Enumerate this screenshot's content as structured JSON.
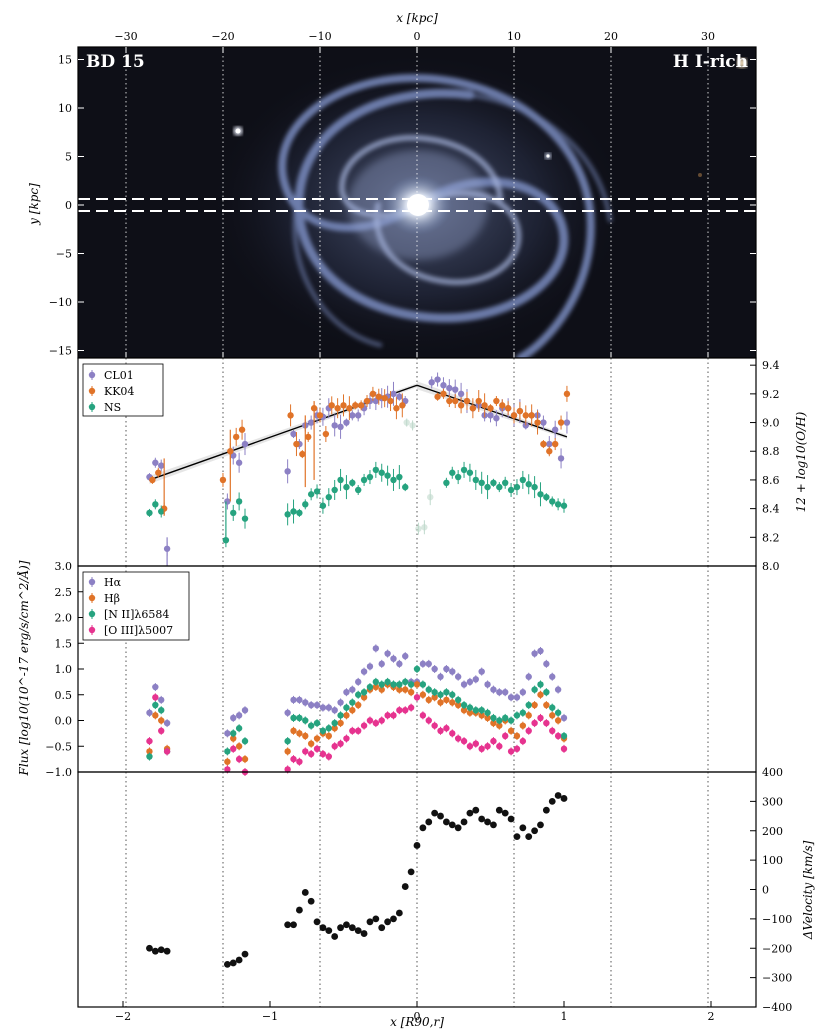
{
  "figure": {
    "galaxy_label": "BD 15",
    "type_label": "H I-rich",
    "top_axis_label": "x [kpc]",
    "bottom_axis_label": "x [R90,r]"
  },
  "colors": {
    "CL01": "#8c80c4",
    "KK04": "#e07328",
    "NS": "#26a37f",
    "Ha": "#8c80c4",
    "Hb": "#e07328",
    "NII": "#26a37f",
    "OIII": "#e6338f",
    "velocity": "#111111"
  },
  "chart_data": [
    {
      "type": "image",
      "name": "galaxy-image-panel",
      "title": "BD 15",
      "annotation": "H I-rich",
      "xlabel": "x [kpc]",
      "ylabel": "y [kpc]",
      "xlim": [
        -35,
        35
      ],
      "ylim": [
        -16,
        16
      ],
      "xticks": [
        -30,
        -20,
        -10,
        0,
        10,
        20,
        30
      ],
      "yticks": [
        15,
        10,
        5,
        0,
        -5,
        -10,
        -15
      ],
      "slit_y": [
        -0.6,
        0.6
      ]
    },
    {
      "type": "scatter",
      "name": "metallicity-panel",
      "ylabel": "12 + log10(O/H)",
      "ylim": [
        8.0,
        9.45
      ],
      "yticks": [
        8.0,
        8.2,
        8.4,
        8.6,
        8.8,
        9.0,
        9.2,
        9.4
      ],
      "left_tick_label": "3.0",
      "legend": [
        "CL01",
        "KK04",
        "NS"
      ],
      "series": [
        {
          "name": "CL01",
          "x": [
            -1.82,
            -1.78,
            -1.74,
            -1.7,
            -1.29,
            -1.25,
            -1.21,
            -1.17,
            -0.88,
            -0.84,
            -0.8,
            -0.76,
            -0.72,
            -0.68,
            -0.64,
            -0.6,
            -0.56,
            -0.52,
            -0.48,
            -0.44,
            -0.4,
            -0.36,
            -0.32,
            -0.28,
            -0.24,
            -0.2,
            -0.16,
            -0.12,
            -0.08,
            0.1,
            0.14,
            0.18,
            0.22,
            0.26,
            0.3,
            0.34,
            0.38,
            0.42,
            0.46,
            0.5,
            0.54,
            0.58,
            0.62,
            0.66,
            0.7,
            0.74,
            0.78,
            0.82,
            0.86,
            0.9,
            0.94,
            0.98,
            1.02
          ],
          "y": [
            8.62,
            8.72,
            8.7,
            8.12,
            8.45,
            8.77,
            8.72,
            8.85,
            8.66,
            8.92,
            8.85,
            8.98,
            9.0,
            9.05,
            9.04,
            9.1,
            8.98,
            8.97,
            9.0,
            9.05,
            9.05,
            9.1,
            9.15,
            9.15,
            9.17,
            9.18,
            9.2,
            9.18,
            9.15,
            9.28,
            9.3,
            9.26,
            9.24,
            9.23,
            9.2,
            9.15,
            9.1,
            9.12,
            9.05,
            9.05,
            9.03,
            9.1,
            9.1,
            9.05,
            9.08,
            8.98,
            9.05,
            9.05,
            9.0,
            8.85,
            8.95,
            8.75,
            9.0
          ]
        },
        {
          "name": "KK04",
          "x": [
            -1.8,
            -1.76,
            -1.72,
            -1.32,
            -1.27,
            -1.23,
            -1.19,
            -0.86,
            -0.82,
            -0.78,
            -0.74,
            -0.7,
            -0.66,
            -0.62,
            -0.58,
            -0.54,
            -0.5,
            -0.46,
            -0.42,
            -0.38,
            -0.34,
            -0.3,
            -0.26,
            -0.22,
            -0.18,
            -0.14,
            -0.1,
            0.14,
            0.18,
            0.22,
            0.26,
            0.3,
            0.34,
            0.38,
            0.42,
            0.46,
            0.5,
            0.54,
            0.58,
            0.62,
            0.66,
            0.7,
            0.74,
            0.78,
            0.82,
            0.86,
            0.9,
            0.94,
            0.98,
            1.02
          ],
          "y": [
            8.6,
            8.65,
            8.4,
            8.6,
            8.8,
            8.9,
            8.95,
            9.05,
            8.85,
            8.78,
            8.9,
            9.1,
            9.05,
            8.92,
            9.12,
            9.1,
            9.12,
            9.1,
            9.12,
            9.12,
            9.15,
            9.2,
            9.18,
            9.17,
            9.15,
            9.1,
            9.12,
            9.18,
            9.2,
            9.15,
            9.15,
            9.12,
            9.15,
            9.1,
            9.15,
            9.12,
            9.1,
            9.15,
            9.12,
            9.1,
            9.05,
            9.08,
            9.05,
            9.05,
            9.0,
            8.85,
            8.8,
            8.85,
            9.0,
            9.2
          ]
        },
        {
          "name": "NS",
          "x": [
            -1.82,
            -1.78,
            -1.74,
            -1.3,
            -1.25,
            -1.21,
            -1.17,
            -0.88,
            -0.84,
            -0.8,
            -0.76,
            -0.72,
            -0.68,
            -0.64,
            -0.6,
            -0.56,
            -0.52,
            -0.48,
            -0.44,
            -0.4,
            -0.36,
            -0.32,
            -0.28,
            -0.24,
            -0.2,
            -0.16,
            -0.12,
            -0.08,
            0.2,
            0.24,
            0.28,
            0.32,
            0.36,
            0.4,
            0.44,
            0.48,
            0.52,
            0.56,
            0.6,
            0.64,
            0.68,
            0.72,
            0.76,
            0.8,
            0.84,
            0.88,
            0.92,
            0.96,
            1.0
          ],
          "y": [
            8.37,
            8.43,
            8.38,
            8.18,
            8.37,
            8.45,
            8.33,
            8.36,
            8.38,
            8.37,
            8.43,
            8.5,
            8.52,
            8.42,
            8.48,
            8.53,
            8.6,
            8.55,
            8.58,
            8.53,
            8.6,
            8.62,
            8.67,
            8.65,
            8.63,
            8.6,
            8.62,
            8.55,
            8.58,
            8.65,
            8.62,
            8.67,
            8.65,
            8.6,
            8.58,
            8.55,
            8.58,
            8.55,
            8.58,
            8.53,
            8.55,
            8.6,
            8.57,
            8.55,
            8.5,
            8.48,
            8.45,
            8.43,
            8.42
          ]
        },
        {
          "name": "central",
          "x": [
            -0.07,
            -0.03,
            0.01,
            0.05,
            0.09
          ],
          "y": [
            9.0,
            8.98,
            8.26,
            8.27,
            8.48
          ]
        }
      ],
      "fit_lines": [
        {
          "x": [
            -1.82,
            0.0
          ],
          "y": [
            8.6,
            9.26
          ]
        },
        {
          "x": [
            0.0,
            1.02
          ],
          "y": [
            9.26,
            8.9
          ]
        }
      ]
    },
    {
      "type": "scatter",
      "name": "flux-panel",
      "ylabel": "Flux [log10(10^-17 erg/s/cm^2/Å)]",
      "ylim": [
        -1.0,
        3.0
      ],
      "yticks": [
        -1.0,
        -0.5,
        0.0,
        0.5,
        1.0,
        1.5,
        2.0,
        2.5
      ],
      "legend": [
        "Hα",
        "Hβ",
        "[N II]λ6584",
        "[O III]λ5007"
      ],
      "series": [
        {
          "name": "Hα",
          "x": [
            -1.82,
            -1.78,
            -1.74,
            -1.7,
            -1.29,
            -1.25,
            -1.21,
            -1.17,
            -0.88,
            -0.84,
            -0.8,
            -0.76,
            -0.72,
            -0.68,
            -0.64,
            -0.6,
            -0.56,
            -0.52,
            -0.48,
            -0.44,
            -0.4,
            -0.36,
            -0.32,
            -0.28,
            -0.24,
            -0.2,
            -0.16,
            -0.12,
            -0.08,
            -0.04,
            0.0,
            0.04,
            0.08,
            0.12,
            0.16,
            0.2,
            0.24,
            0.28,
            0.32,
            0.36,
            0.4,
            0.44,
            0.48,
            0.52,
            0.56,
            0.6,
            0.64,
            0.68,
            0.72,
            0.76,
            0.8,
            0.84,
            0.88,
            0.92,
            0.96,
            1.0
          ],
          "y": [
            0.15,
            0.65,
            0.4,
            -0.05,
            -0.25,
            0.05,
            0.1,
            0.2,
            0.15,
            0.4,
            0.4,
            0.35,
            0.3,
            0.3,
            0.25,
            0.25,
            0.2,
            0.35,
            0.55,
            0.6,
            0.75,
            0.95,
            1.05,
            1.4,
            1.1,
            1.3,
            1.2,
            1.1,
            1.25,
            0.75,
            0.75,
            1.1,
            1.1,
            1.0,
            0.85,
            1.0,
            0.95,
            0.85,
            0.7,
            0.75,
            0.8,
            0.95,
            0.7,
            0.6,
            0.55,
            0.55,
            0.45,
            0.45,
            0.55,
            0.85,
            1.3,
            1.35,
            1.1,
            0.85,
            0.6,
            0.05
          ]
        },
        {
          "name": "Hβ",
          "x": [
            -1.82,
            -1.78,
            -1.74,
            -1.7,
            -1.29,
            -1.25,
            -1.21,
            -1.17,
            -0.88,
            -0.84,
            -0.8,
            -0.76,
            -0.72,
            -0.68,
            -0.64,
            -0.6,
            -0.56,
            -0.52,
            -0.48,
            -0.44,
            -0.4,
            -0.36,
            -0.32,
            -0.28,
            -0.24,
            -0.2,
            -0.16,
            -0.12,
            -0.08,
            -0.04,
            0.0,
            0.04,
            0.08,
            0.12,
            0.16,
            0.2,
            0.24,
            0.28,
            0.32,
            0.36,
            0.4,
            0.44,
            0.48,
            0.52,
            0.56,
            0.6,
            0.64,
            0.68,
            0.72,
            0.76,
            0.8,
            0.84,
            0.88,
            0.92,
            0.96,
            1.0
          ],
          "y": [
            -0.6,
            0.1,
            0.0,
            -0.55,
            -0.8,
            -0.35,
            -0.5,
            -0.75,
            -0.6,
            -0.2,
            -0.25,
            -0.3,
            -0.45,
            -0.35,
            -0.25,
            -0.3,
            -0.15,
            -0.05,
            0.1,
            0.2,
            0.3,
            0.45,
            0.6,
            0.65,
            0.6,
            0.7,
            0.65,
            0.6,
            0.6,
            0.55,
            0.7,
            0.5,
            0.4,
            0.45,
            0.35,
            0.4,
            0.35,
            0.3,
            0.2,
            0.15,
            0.15,
            0.1,
            0.05,
            -0.05,
            -0.1,
            0.0,
            -0.2,
            -0.3,
            -0.1,
            0.1,
            0.3,
            0.5,
            0.3,
            0.1,
            0.0,
            -0.35
          ]
        },
        {
          "name": "[N II]λ6584",
          "x": [
            -1.82,
            -1.78,
            -1.74,
            -1.7,
            -1.29,
            -1.25,
            -1.21,
            -1.17,
            -0.88,
            -0.84,
            -0.8,
            -0.76,
            -0.72,
            -0.68,
            -0.64,
            -0.6,
            -0.56,
            -0.52,
            -0.48,
            -0.44,
            -0.4,
            -0.36,
            -0.32,
            -0.28,
            -0.24,
            -0.2,
            -0.16,
            -0.12,
            -0.08,
            -0.04,
            0.0,
            0.04,
            0.08,
            0.12,
            0.16,
            0.2,
            0.24,
            0.28,
            0.32,
            0.36,
            0.4,
            0.44,
            0.48,
            0.52,
            0.56,
            0.6,
            0.64,
            0.68,
            0.72,
            0.76,
            0.8,
            0.84,
            0.88,
            0.92,
            0.96,
            1.0
          ],
          "y": [
            -0.7,
            0.3,
            0.2,
            -0.6,
            -0.6,
            -0.25,
            -0.15,
            -0.4,
            -0.4,
            0.05,
            0.05,
            0.0,
            -0.1,
            -0.05,
            -0.2,
            -0.15,
            -0.05,
            0.1,
            0.25,
            0.35,
            0.5,
            0.55,
            0.65,
            0.75,
            0.7,
            0.75,
            0.7,
            0.7,
            0.75,
            0.7,
            1.0,
            0.7,
            0.6,
            0.55,
            0.5,
            0.55,
            0.5,
            0.4,
            0.3,
            0.25,
            0.2,
            0.2,
            0.15,
            0.05,
            0.0,
            0.05,
            0.0,
            0.1,
            0.15,
            0.3,
            0.6,
            0.7,
            0.55,
            0.25,
            0.15,
            -0.3
          ]
        },
        {
          "name": "[O III]λ5007",
          "x": [
            -1.82,
            -1.78,
            -1.74,
            -1.7,
            -1.29,
            -1.25,
            -1.21,
            -1.17,
            -0.88,
            -0.84,
            -0.8,
            -0.76,
            -0.72,
            -0.68,
            -0.64,
            -0.6,
            -0.56,
            -0.52,
            -0.48,
            -0.44,
            -0.4,
            -0.36,
            -0.32,
            -0.28,
            -0.24,
            -0.2,
            -0.16,
            -0.12,
            -0.08,
            -0.04,
            0.0,
            0.04,
            0.08,
            0.12,
            0.16,
            0.2,
            0.24,
            0.28,
            0.32,
            0.36,
            0.4,
            0.44,
            0.48,
            0.52,
            0.56,
            0.6,
            0.64,
            0.68,
            0.72,
            0.76,
            0.8,
            0.84,
            0.88,
            0.92,
            0.96,
            1.0
          ],
          "y": [
            -0.4,
            0.45,
            -0.2,
            -0.6,
            -0.95,
            -0.55,
            -0.75,
            -1.0,
            -0.95,
            -0.75,
            -0.8,
            -0.6,
            -0.65,
            -0.55,
            -0.65,
            -0.7,
            -0.5,
            -0.45,
            -0.35,
            -0.2,
            -0.2,
            -0.1,
            0.0,
            -0.05,
            0.0,
            0.1,
            0.1,
            0.2,
            0.2,
            0.25,
            0.45,
            0.1,
            0.0,
            -0.1,
            -0.2,
            -0.15,
            -0.25,
            -0.35,
            -0.4,
            -0.5,
            -0.45,
            -0.55,
            -0.5,
            -0.4,
            -0.5,
            -0.3,
            -0.6,
            -0.55,
            -0.4,
            -0.2,
            -0.05,
            0.05,
            -0.05,
            -0.2,
            -0.3,
            -0.55
          ]
        }
      ]
    },
    {
      "type": "scatter",
      "name": "velocity-panel",
      "ylabel": "ΔVelocity [km/s]",
      "xlabel": "x [R90,r]",
      "ylim": [
        -400,
        400
      ],
      "yticks": [
        -400,
        -300,
        -200,
        -100,
        0,
        100,
        200,
        300,
        400
      ],
      "xlim": [
        -2.3,
        2.3
      ],
      "xticks": [
        -2,
        -1,
        0,
        1,
        2
      ],
      "series": [
        {
          "name": "ΔVelocity",
          "x": [
            -1.82,
            -1.78,
            -1.74,
            -1.7,
            -1.29,
            -1.25,
            -1.21,
            -1.17,
            -0.88,
            -0.84,
            -0.8,
            -0.76,
            -0.72,
            -0.68,
            -0.64,
            -0.6,
            -0.56,
            -0.52,
            -0.48,
            -0.44,
            -0.4,
            -0.36,
            -0.32,
            -0.28,
            -0.24,
            -0.2,
            -0.16,
            -0.12,
            -0.08,
            -0.04,
            0.0,
            0.04,
            0.08,
            0.12,
            0.16,
            0.2,
            0.24,
            0.28,
            0.32,
            0.36,
            0.4,
            0.44,
            0.48,
            0.52,
            0.56,
            0.6,
            0.64,
            0.68,
            0.72,
            0.76,
            0.8,
            0.84,
            0.88,
            0.92,
            0.96,
            1.0
          ],
          "y": [
            -200,
            -210,
            -205,
            -210,
            -255,
            -250,
            -240,
            -220,
            -120,
            -120,
            -70,
            -10,
            -40,
            -110,
            -130,
            -140,
            -160,
            -130,
            -120,
            -130,
            -140,
            -150,
            -110,
            -100,
            -130,
            -110,
            -100,
            -80,
            10,
            60,
            150,
            210,
            230,
            260,
            250,
            230,
            220,
            210,
            230,
            260,
            270,
            240,
            230,
            220,
            270,
            260,
            240,
            180,
            210,
            180,
            200,
            220,
            270,
            300,
            320,
            310
          ]
        }
      ]
    }
  ]
}
